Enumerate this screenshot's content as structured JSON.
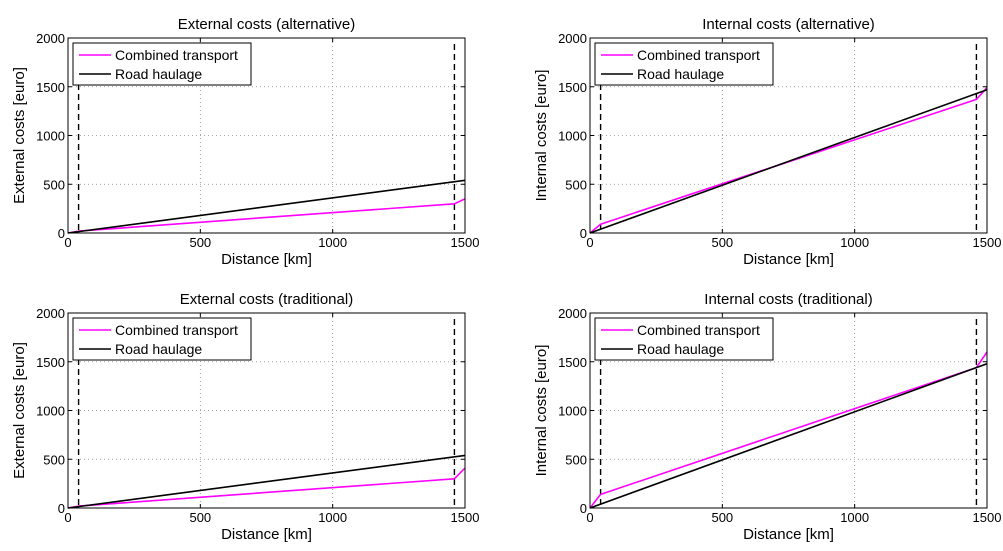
{
  "chart_data": [
    {
      "type": "line",
      "title": "External costs (alternative)",
      "xlabel": "Distance [km]",
      "ylabel": "External costs [euro]",
      "xlim": [
        0,
        1500
      ],
      "ylim": [
        0,
        2000
      ],
      "xticks": [
        0,
        500,
        1000,
        1500
      ],
      "yticks": [
        0,
        500,
        1000,
        1500,
        2000
      ],
      "grid": true,
      "legend_position": "top-left",
      "vlines": [
        40,
        1460
      ],
      "series": [
        {
          "name": "Combined transport",
          "color": "#ff00ff",
          "x": [
            0,
            40,
            1460,
            1500
          ],
          "y": [
            0,
            20,
            300,
            350
          ]
        },
        {
          "name": "Road haulage",
          "color": "#000000",
          "x": [
            0,
            1500
          ],
          "y": [
            0,
            540
          ]
        }
      ]
    },
    {
      "type": "line",
      "title": "Internal costs (alternative)",
      "xlabel": "Distance [km]",
      "ylabel": "Internal costs [euro]",
      "xlim": [
        0,
        1500
      ],
      "ylim": [
        0,
        2000
      ],
      "xticks": [
        0,
        500,
        1000,
        1500
      ],
      "yticks": [
        0,
        500,
        1000,
        1500,
        2000
      ],
      "grid": true,
      "legend_position": "top-left",
      "vlines": [
        40,
        1460
      ],
      "series": [
        {
          "name": "Combined transport",
          "color": "#ff00ff",
          "x": [
            0,
            40,
            1460,
            1500
          ],
          "y": [
            0,
            90,
            1370,
            1490
          ]
        },
        {
          "name": "Road haulage",
          "color": "#000000",
          "x": [
            0,
            1500
          ],
          "y": [
            0,
            1470
          ]
        }
      ]
    },
    {
      "type": "line",
      "title": "External costs (traditional)",
      "xlabel": "Distance [km]",
      "ylabel": "External costs [euro]",
      "xlim": [
        0,
        1500
      ],
      "ylim": [
        0,
        2000
      ],
      "xticks": [
        0,
        500,
        1000,
        1500
      ],
      "yticks": [
        0,
        500,
        1000,
        1500,
        2000
      ],
      "grid": true,
      "legend_position": "top-left",
      "vlines": [
        40,
        1460
      ],
      "series": [
        {
          "name": "Combined transport",
          "color": "#ff00ff",
          "x": [
            0,
            40,
            1460,
            1500
          ],
          "y": [
            0,
            20,
            300,
            410
          ]
        },
        {
          "name": "Road haulage",
          "color": "#000000",
          "x": [
            0,
            1500
          ],
          "y": [
            0,
            540
          ]
        }
      ]
    },
    {
      "type": "line",
      "title": "Internal costs (traditional)",
      "xlabel": "Distance [km]",
      "ylabel": "Internal costs [euro]",
      "xlim": [
        0,
        1500
      ],
      "ylim": [
        0,
        2000
      ],
      "xticks": [
        0,
        500,
        1000,
        1500
      ],
      "yticks": [
        0,
        500,
        1000,
        1500,
        2000
      ],
      "grid": true,
      "legend_position": "top-left",
      "vlines": [
        40,
        1460
      ],
      "series": [
        {
          "name": "Combined transport",
          "color": "#ff00ff",
          "x": [
            0,
            40,
            1460,
            1500
          ],
          "y": [
            0,
            140,
            1440,
            1600
          ]
        },
        {
          "name": "Road haulage",
          "color": "#000000",
          "x": [
            0,
            1500
          ],
          "y": [
            0,
            1480
          ]
        }
      ]
    }
  ]
}
